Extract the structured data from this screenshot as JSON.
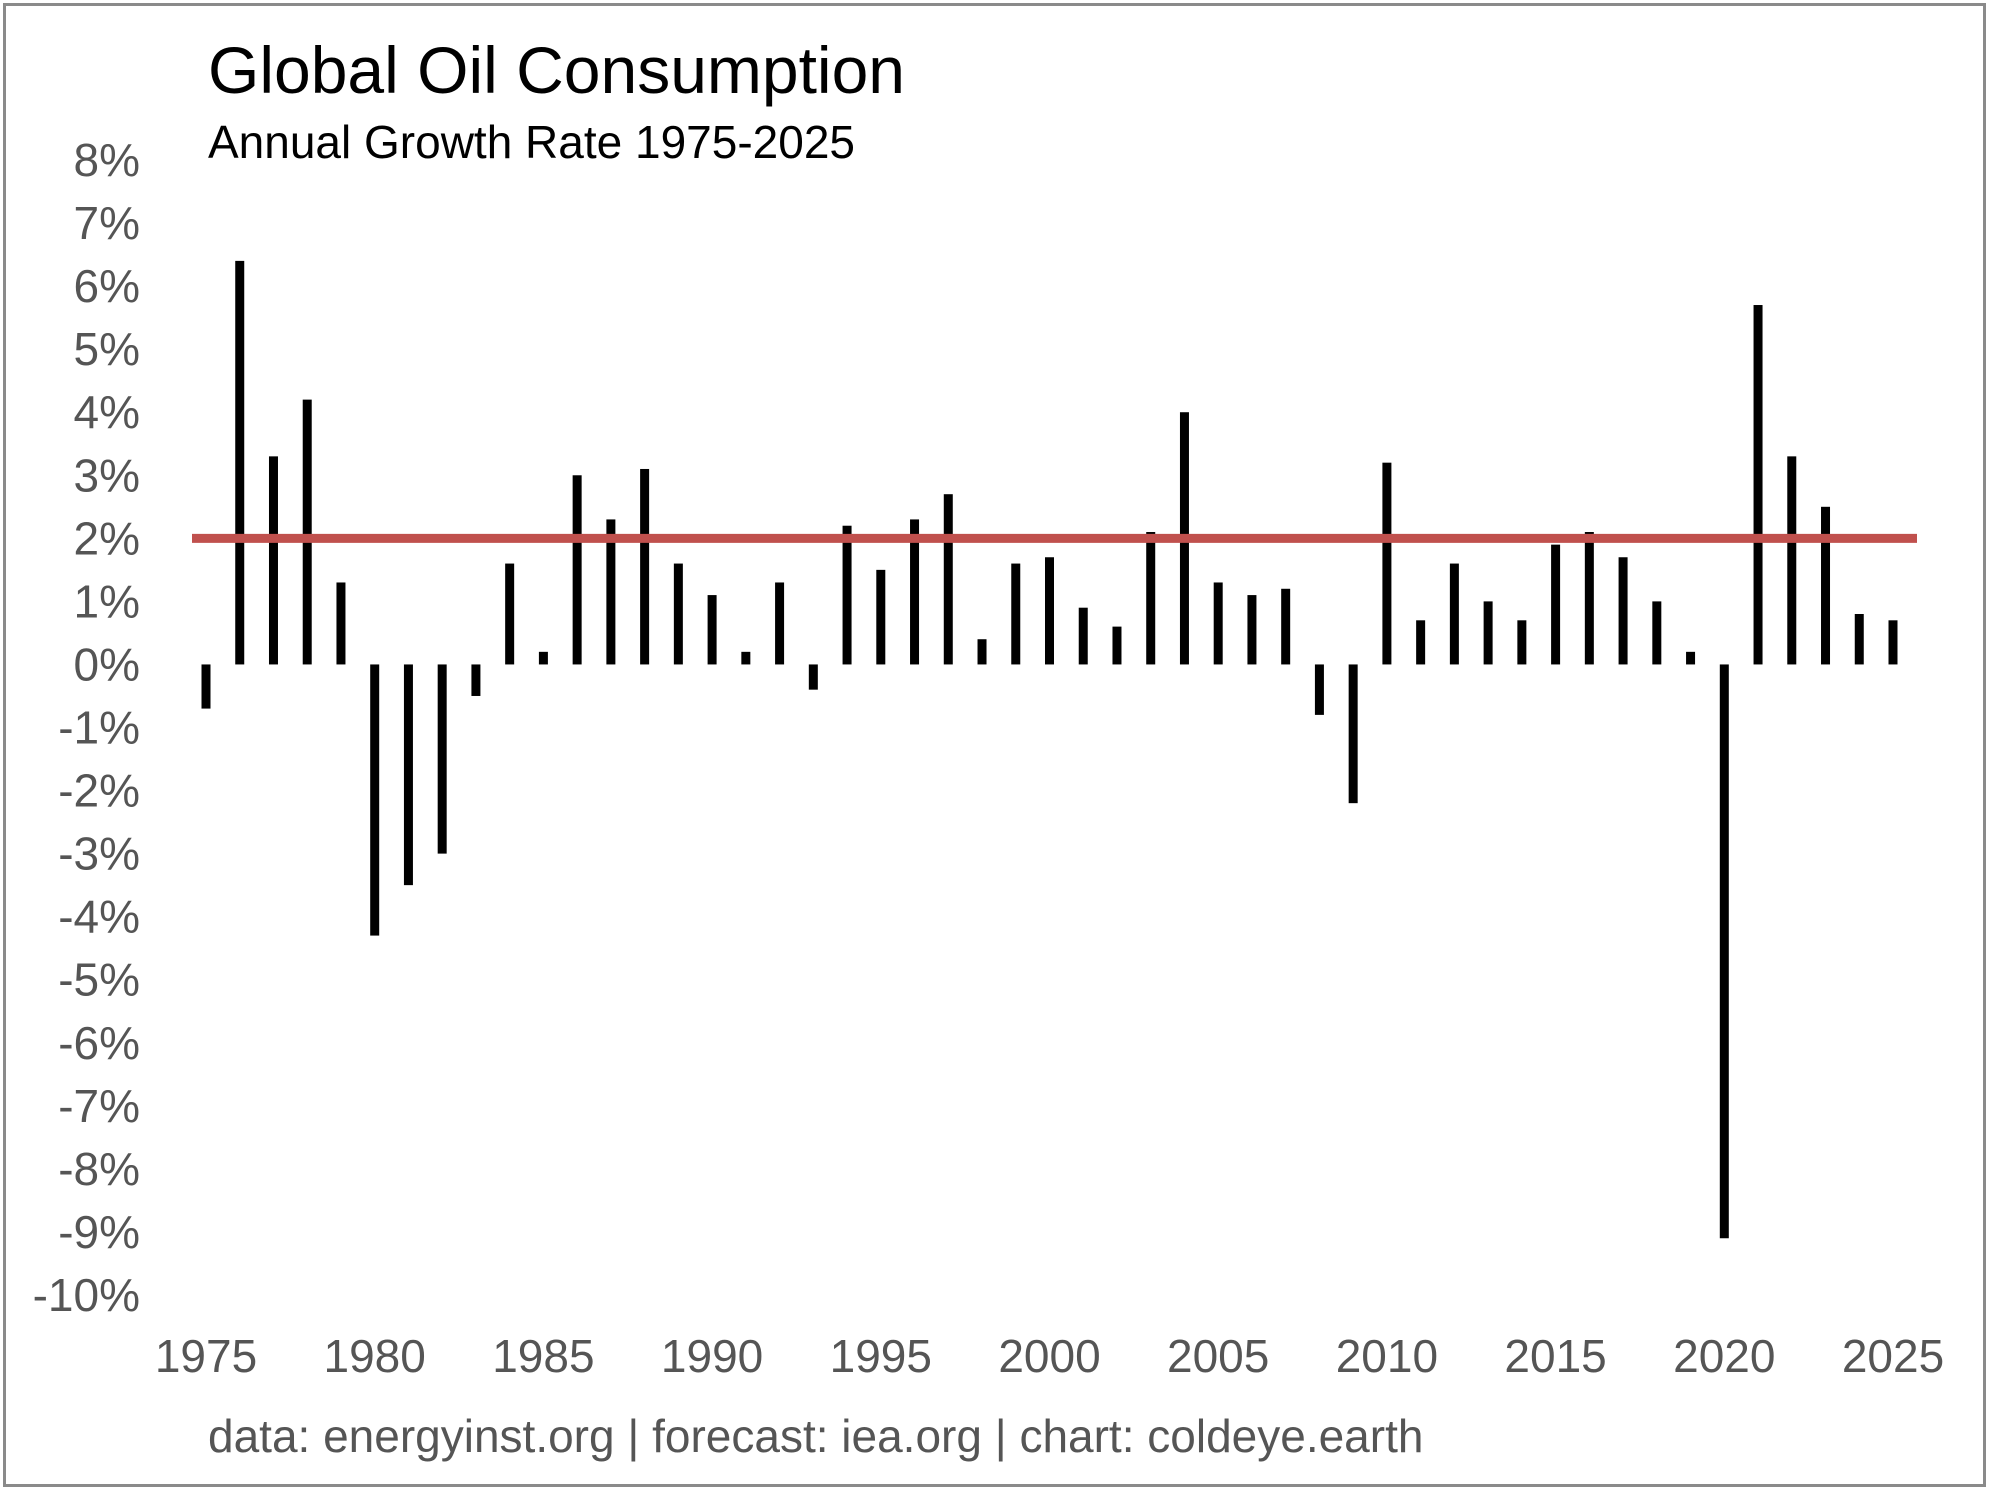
{
  "chart_data": {
    "type": "bar",
    "title": "Global Oil Consumption",
    "subtitle": "Annual Growth Rate 1975-2025",
    "xlabel": "",
    "ylabel": "",
    "x_ticks": [
      "1975",
      "1980",
      "1985",
      "1990",
      "1995",
      "2000",
      "2005",
      "2010",
      "2015",
      "2020",
      "2025"
    ],
    "y_ticks": [
      "8%",
      "7%",
      "6%",
      "5%",
      "4%",
      "3%",
      "2%",
      "1%",
      "0%",
      "-1%",
      "-2%",
      "-3%",
      "-4%",
      "-5%",
      "-6%",
      "-7%",
      "-8%",
      "-9%",
      "-10%"
    ],
    "ylim": [
      -10,
      8
    ],
    "xlim": [
      1975,
      2025
    ],
    "grid": false,
    "categories": [
      1975,
      1976,
      1977,
      1978,
      1979,
      1980,
      1981,
      1982,
      1983,
      1984,
      1985,
      1986,
      1987,
      1988,
      1989,
      1990,
      1991,
      1992,
      1993,
      1994,
      1995,
      1996,
      1997,
      1998,
      1999,
      2000,
      2001,
      2002,
      2003,
      2004,
      2005,
      2006,
      2007,
      2008,
      2009,
      2010,
      2011,
      2012,
      2013,
      2014,
      2015,
      2016,
      2017,
      2018,
      2019,
      2020,
      2021,
      2022,
      2023,
      2024,
      2025
    ],
    "values": [
      -0.7,
      6.4,
      3.3,
      4.2,
      1.3,
      -4.3,
      -3.5,
      -3.0,
      -0.5,
      1.6,
      0.2,
      3.0,
      2.3,
      3.1,
      1.6,
      1.1,
      0.2,
      1.3,
      -0.4,
      2.2,
      1.5,
      2.3,
      2.7,
      0.4,
      1.6,
      1.7,
      0.9,
      0.6,
      2.1,
      4.0,
      1.3,
      1.1,
      1.2,
      -0.8,
      -2.2,
      3.2,
      0.7,
      1.6,
      1.0,
      0.7,
      1.9,
      2.1,
      1.7,
      1.0,
      0.2,
      -9.1,
      5.7,
      3.3,
      2.5,
      0.8,
      0.7
    ],
    "bar_color": "#000000",
    "reference_line": {
      "value": 2.0,
      "color": "#c0504d"
    },
    "footer": "data: energyinst.org | forecast: iea.org | chart: coldeye.earth"
  }
}
